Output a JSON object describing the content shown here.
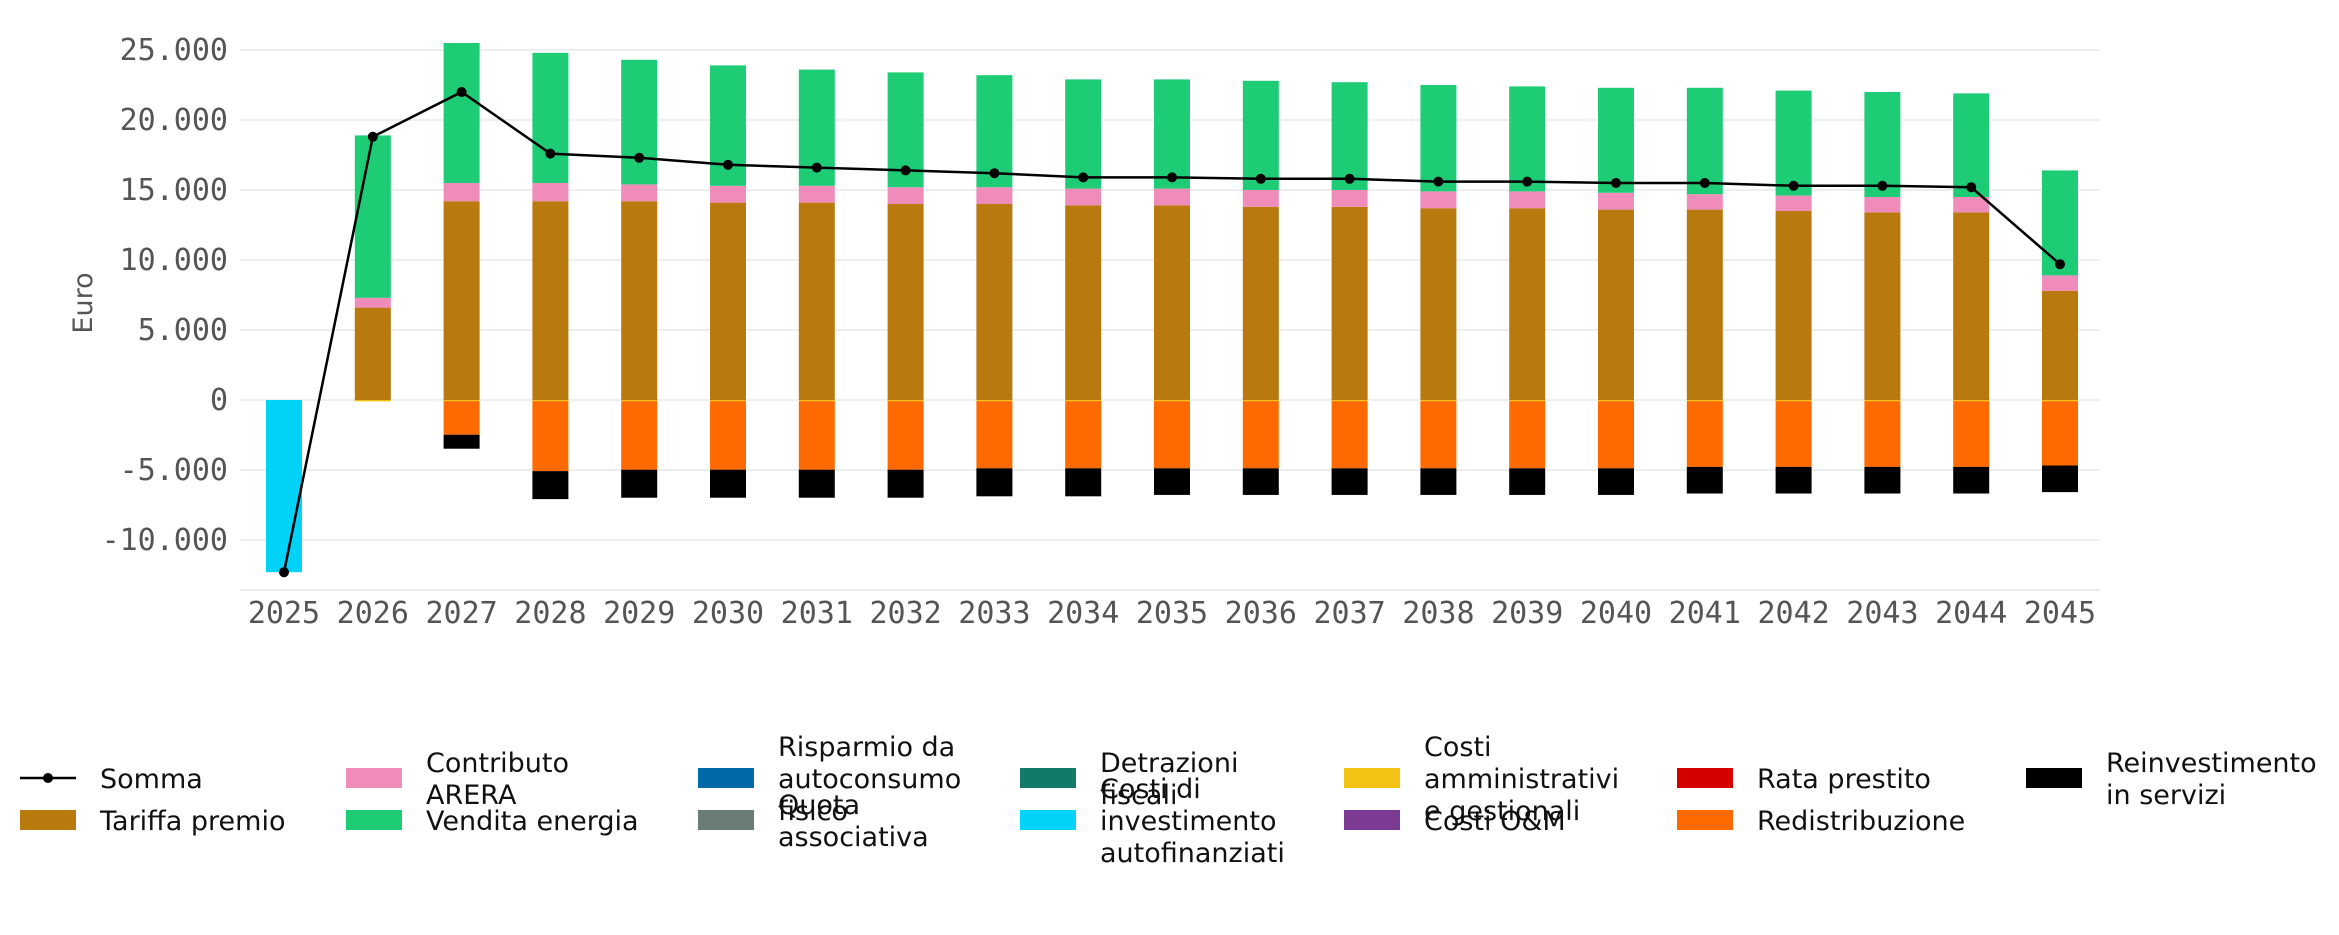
{
  "chart_data": {
    "type": "bar",
    "stacked": true,
    "ylabel": "Euro",
    "xlabel": "",
    "ylim": [
      -13500,
      25600
    ],
    "y_ticks": [
      -10000,
      -5000,
      0,
      5000,
      10000,
      15000,
      20000,
      25000
    ],
    "y_tick_labels": [
      "-10.000",
      "-5.000",
      "0",
      "5.000",
      "10.000",
      "15.000",
      "20.000",
      "25.000"
    ],
    "grid": "horizontal",
    "legend_position": "bottom",
    "categories": [
      "2025",
      "2026",
      "2027",
      "2028",
      "2029",
      "2030",
      "2031",
      "2032",
      "2033",
      "2034",
      "2035",
      "2036",
      "2037",
      "2038",
      "2039",
      "2040",
      "2041",
      "2042",
      "2043",
      "2044",
      "2045"
    ],
    "series": [
      {
        "name": "Tariffa premio",
        "color": "#b8790f",
        "values": [
          0,
          6600,
          14200,
          14200,
          14200,
          14100,
          14100,
          14000,
          14000,
          13900,
          13900,
          13800,
          13800,
          13700,
          13700,
          13600,
          13600,
          13500,
          13400,
          13400,
          7800
        ]
      },
      {
        "name": "Contributo ARERA",
        "color": "#f08cba",
        "values": [
          0,
          700,
          1300,
          1300,
          1200,
          1200,
          1200,
          1200,
          1200,
          1200,
          1200,
          1200,
          1200,
          1200,
          1200,
          1200,
          1100,
          1100,
          1100,
          1100,
          1100
        ]
      },
      {
        "name": "Vendita energia",
        "color": "#1fcc76",
        "values": [
          0,
          11600,
          10000,
          9300,
          8900,
          8600,
          8300,
          8200,
          8000,
          7800,
          7800,
          7800,
          7700,
          7600,
          7500,
          7500,
          7600,
          7500,
          7500,
          7400,
          7500
        ]
      },
      {
        "name": "Risparmio da autoconsumo fisico",
        "color": "#006aa8",
        "values": [
          0,
          0,
          0,
          0,
          0,
          0,
          0,
          0,
          0,
          0,
          0,
          0,
          0,
          0,
          0,
          0,
          0,
          0,
          0,
          0,
          0
        ]
      },
      {
        "name": "Quota associativa",
        "color": "#6b7b78",
        "values": [
          0,
          0,
          0,
          0,
          0,
          0,
          0,
          0,
          0,
          0,
          0,
          0,
          0,
          0,
          0,
          0,
          0,
          0,
          0,
          0,
          0
        ]
      },
      {
        "name": "Detrazioni fiscali",
        "color": "#127a66",
        "values": [
          0,
          0,
          0,
          0,
          0,
          0,
          0,
          0,
          0,
          0,
          0,
          0,
          0,
          0,
          0,
          0,
          0,
          0,
          0,
          0,
          0
        ]
      },
      {
        "name": "Costi di investimento autofinanziati",
        "color": "#00d2f8",
        "values": [
          -12300,
          0,
          0,
          0,
          0,
          0,
          0,
          0,
          0,
          0,
          0,
          0,
          0,
          0,
          0,
          0,
          0,
          0,
          0,
          0,
          0
        ]
      },
      {
        "name": "Costi amministrativi e gestionali",
        "color": "#f2c314",
        "values": [
          0,
          -100,
          -80,
          -80,
          -80,
          -80,
          -80,
          -80,
          -80,
          -80,
          -80,
          -80,
          -80,
          -80,
          -80,
          -80,
          -80,
          -80,
          -80,
          -80,
          -80
        ]
      },
      {
        "name": "Costi O&M",
        "color": "#7b3b92",
        "values": [
          0,
          0,
          0,
          0,
          0,
          0,
          0,
          0,
          0,
          0,
          0,
          0,
          0,
          0,
          0,
          0,
          0,
          0,
          0,
          0,
          0
        ]
      },
      {
        "name": "Rata prestito",
        "color": "#d40000",
        "values": [
          0,
          0,
          0,
          0,
          0,
          0,
          0,
          0,
          0,
          0,
          0,
          0,
          0,
          0,
          0,
          0,
          0,
          0,
          0,
          0,
          0
        ]
      },
      {
        "name": "Redistribuzione",
        "color": "#ff6a00",
        "values": [
          0,
          0,
          -2400,
          -5000,
          -4900,
          -4900,
          -4900,
          -4900,
          -4800,
          -4800,
          -4800,
          -4800,
          -4800,
          -4800,
          -4800,
          -4800,
          -4700,
          -4700,
          -4700,
          -4700,
          -4600
        ]
      },
      {
        "name": "Reinvestimento in servizi",
        "color": "#000000",
        "values": [
          0,
          0,
          -1000,
          -2000,
          -2000,
          -2000,
          -2000,
          -2000,
          -2000,
          -2000,
          -1900,
          -1900,
          -1900,
          -1900,
          -1900,
          -1900,
          -1900,
          -1900,
          -1900,
          -1900,
          -1900
        ]
      }
    ],
    "line": {
      "name": "Somma",
      "color": "#000000",
      "values": [
        -12300,
        18800,
        22000,
        17600,
        17300,
        16800,
        16600,
        16400,
        16200,
        15900,
        15900,
        15800,
        15800,
        15600,
        15600,
        15500,
        15500,
        15300,
        15300,
        15200,
        9700
      ]
    }
  },
  "legend": {
    "columns": [
      [
        "Somma",
        "Tariffa premio"
      ],
      [
        "Contributo ARERA",
        "Vendita energia"
      ],
      [
        "Risparmio da autoconsumo fisico",
        "Quota associativa"
      ],
      [
        "Detrazioni fiscali",
        "Costi di investimento autofinanziati"
      ],
      [
        "Costi amministrativi e gestionali",
        "Costi O&M"
      ],
      [
        "Rata prestito",
        "Redistribuzione"
      ],
      [
        "Reinvestimento in servizi"
      ]
    ],
    "lines": {
      "Somma": [
        "Somma"
      ],
      "Tariffa premio": [
        "Tariffa premio"
      ],
      "Contributo ARERA": [
        "Contributo",
        "ARERA"
      ],
      "Vendita energia": [
        "Vendita energia"
      ],
      "Risparmio da autoconsumo fisico": [
        "Risparmio da",
        "autoconsumo",
        "fisico"
      ],
      "Quota associativa": [
        "Quota",
        "associativa"
      ],
      "Detrazioni fiscali": [
        "Detrazioni",
        "fiscali"
      ],
      "Costi di investimento autofinanziati": [
        "Costi di",
        "investimento",
        "autofinanziati"
      ],
      "Costi amministrativi e gestionali": [
        "Costi",
        "amministrativi",
        "e gestionali"
      ],
      "Costi O&M": [
        "Costi O&M"
      ],
      "Rata prestito": [
        "Rata prestito"
      ],
      "Redistribuzione": [
        "Redistribuzione"
      ],
      "Reinvestimento in servizi": [
        "Reinvestimento",
        "in servizi"
      ]
    }
  }
}
